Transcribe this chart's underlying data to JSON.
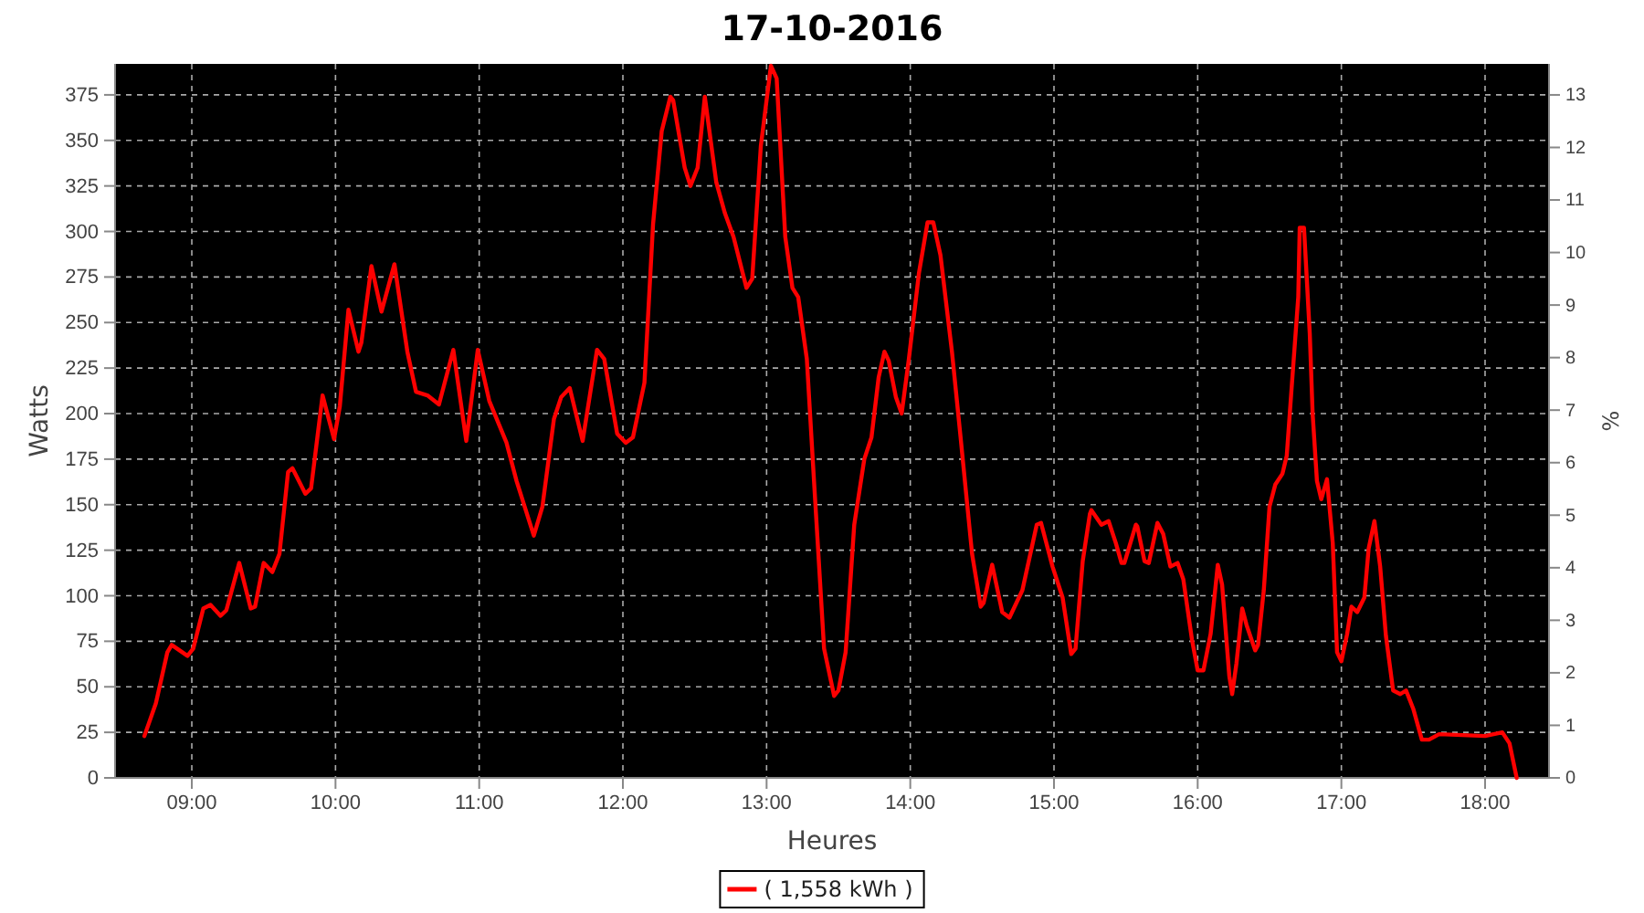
{
  "chart_data": {
    "type": "line",
    "title": "17-10-2016",
    "xlabel": "Heures",
    "ylabel": "Watts",
    "y2label": "%",
    "xlim": [
      8.466,
      18.445
    ],
    "ylim": [
      0,
      392
    ],
    "y2lim": [
      0,
      13.59
    ],
    "xticks": [
      {
        "value": 9,
        "label": "09:00"
      },
      {
        "value": 10,
        "label": "10:00"
      },
      {
        "value": 11,
        "label": "11:00"
      },
      {
        "value": 12,
        "label": "12:00"
      },
      {
        "value": 13,
        "label": "13:00"
      },
      {
        "value": 14,
        "label": "14:00"
      },
      {
        "value": 15,
        "label": "15:00"
      },
      {
        "value": 16,
        "label": "16:00"
      },
      {
        "value": 17,
        "label": "17:00"
      },
      {
        "value": 18,
        "label": "18:00"
      }
    ],
    "yticks": [
      0,
      25,
      50,
      75,
      100,
      125,
      150,
      175,
      200,
      225,
      250,
      275,
      300,
      325,
      350,
      375
    ],
    "y2ticks": [
      0,
      1,
      2,
      3,
      4,
      5,
      6,
      7,
      8,
      9,
      10,
      11,
      12,
      13
    ],
    "grid": true,
    "legend": "bottom",
    "marker": "none",
    "line_style": "solid",
    "series": [
      {
        "name": "( 1,558 kWh )",
        "color": "#ff0000",
        "x": [
          8.67,
          8.75,
          8.83,
          8.86,
          8.97,
          9.01,
          9.08,
          9.13,
          9.2,
          9.24,
          9.33,
          9.41,
          9.44,
          9.5,
          9.56,
          9.61,
          9.67,
          9.7,
          9.79,
          9.83,
          9.91,
          9.99,
          10.03,
          10.09,
          10.16,
          10.18,
          10.25,
          10.32,
          10.41,
          10.5,
          10.56,
          10.64,
          10.72,
          10.82,
          10.91,
          10.99,
          11.07,
          11.19,
          11.26,
          11.38,
          11.44,
          11.52,
          11.57,
          11.63,
          11.72,
          11.82,
          11.87,
          11.96,
          12.02,
          12.07,
          12.15,
          12.21,
          12.27,
          12.33,
          12.35,
          12.43,
          12.47,
          12.52,
          12.57,
          12.65,
          12.71,
          12.77,
          12.86,
          12.9,
          12.96,
          13.03,
          13.07,
          13.13,
          13.18,
          13.22,
          13.28,
          13.33,
          13.4,
          13.47,
          13.5,
          13.55,
          13.61,
          13.68,
          13.73,
          13.78,
          13.82,
          13.85,
          13.9,
          13.94,
          13.99,
          14.06,
          14.12,
          14.16,
          14.21,
          14.29,
          14.35,
          14.43,
          14.49,
          14.51,
          14.57,
          14.64,
          14.69,
          14.78,
          14.88,
          14.91,
          14.99,
          15.06,
          15.12,
          15.15,
          15.2,
          15.25,
          15.26,
          15.33,
          15.38,
          15.43,
          15.47,
          15.49,
          15.57,
          15.58,
          15.63,
          15.66,
          15.72,
          15.76,
          15.81,
          15.86,
          15.9,
          15.96,
          16.0,
          16.04,
          16.09,
          16.14,
          16.17,
          16.22,
          16.24,
          16.27,
          16.31,
          16.34,
          16.4,
          16.42,
          16.46,
          16.5,
          16.54,
          16.59,
          16.62,
          16.65,
          16.7,
          16.71,
          16.74,
          16.78,
          16.8,
          16.83,
          16.86,
          16.9,
          16.94,
          16.97,
          17.0,
          17.04,
          17.07,
          17.11,
          17.16,
          17.19,
          17.23,
          17.27,
          17.31,
          17.36,
          17.41,
          17.45,
          17.5,
          17.56,
          17.61,
          17.68,
          18.0,
          18.12,
          18.17,
          18.22
        ],
        "values": [
          23,
          41,
          69,
          73,
          67,
          71,
          93,
          95,
          89,
          92,
          118,
          93,
          94,
          118,
          113,
          123,
          168,
          170,
          156,
          159,
          210,
          186,
          204,
          257,
          234,
          239,
          281,
          256,
          282,
          234,
          212,
          210,
          205,
          235,
          185,
          235,
          207,
          184,
          163,
          133,
          149,
          197,
          209,
          214,
          185,
          235,
          230,
          189,
          184,
          187,
          217,
          304,
          355,
          374,
          372,
          335,
          325,
          335,
          374,
          327,
          310,
          297,
          269,
          274,
          347,
          391,
          384,
          297,
          269,
          264,
          230,
          163,
          71,
          45,
          48,
          69,
          139,
          175,
          187,
          220,
          234,
          229,
          209,
          200,
          230,
          277,
          305,
          305,
          287,
          234,
          187,
          123,
          94,
          96,
          117,
          91,
          88,
          103,
          139,
          140,
          116,
          99,
          68,
          71,
          119,
          145,
          147,
          139,
          141,
          129,
          118,
          118,
          139,
          138,
          119,
          118,
          140,
          134,
          116,
          118,
          109,
          76,
          59,
          59,
          79,
          117,
          106,
          56,
          46,
          63,
          93,
          84,
          70,
          73,
          103,
          149,
          161,
          167,
          177,
          210,
          264,
          302,
          302,
          244,
          200,
          163,
          153,
          164,
          129,
          69,
          64,
          79,
          94,
          91,
          99,
          126,
          141,
          116,
          78,
          48,
          46,
          48,
          38,
          21,
          21,
          24,
          23,
          25,
          19,
          0
        ]
      }
    ]
  }
}
